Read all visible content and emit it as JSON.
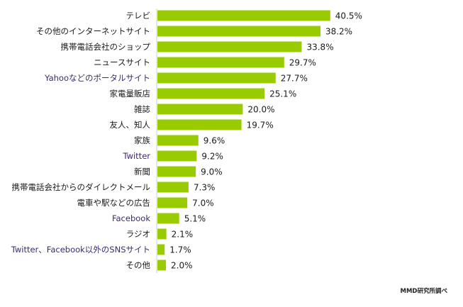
{
  "chart_data": {
    "type": "bar",
    "orientation": "horizontal",
    "categories": [
      "テレビ",
      "その他のインターネットサイト",
      "携帯電話会社のショップ",
      "ニュースサイト",
      "Yahooなどのポータルサイト",
      "家電量販店",
      "雑誌",
      "友人、知人",
      "家族",
      "Twitter",
      "新聞",
      "携帯電話会社からのダイレクトメール",
      "電車や駅などの広告",
      "Facebook",
      "ラジオ",
      "Twitter、Facebook以外のSNSサイト",
      "その他"
    ],
    "values": [
      40.5,
      38.2,
      33.8,
      29.7,
      27.7,
      25.1,
      20.0,
      19.7,
      9.6,
      9.2,
      9.0,
      7.3,
      7.0,
      5.1,
      2.1,
      1.7,
      2.0
    ],
    "value_labels": [
      "40.5%",
      "38.2%",
      "33.8%",
      "29.7%",
      "27.7%",
      "25.1%",
      "20.0%",
      "19.7%",
      "9.6%",
      "9.2%",
      "9.0%",
      "7.3%",
      "7.0%",
      "5.1%",
      "2.1%",
      "1.7%",
      "2.0%"
    ],
    "bar_color": "#99cc00",
    "xlim": [
      0,
      45
    ],
    "grid": false,
    "legend": "none"
  },
  "source": "MMD研究所調べ"
}
